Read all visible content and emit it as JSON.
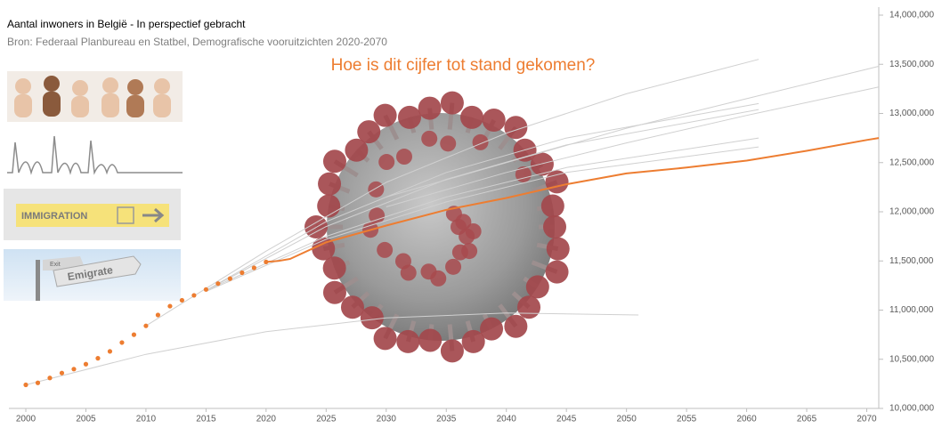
{
  "chart_data": {
    "type": "line",
    "title": "Aantal inwoners in België - In perspectief gebracht",
    "subtitle": "Bron: Federaal Planbureau en Statbel, Demografische vooruitzichten 2020-2070",
    "annotation": "Hoe is dit cijfer tot stand gekomen?",
    "xlim": [
      2000,
      2071
    ],
    "xticks": [
      2000,
      2005,
      2010,
      2015,
      2020,
      2025,
      2030,
      2035,
      2040,
      2045,
      2050,
      2055,
      2060,
      2065,
      2070
    ],
    "ylim": [
      10000000,
      14000000
    ],
    "yticks": [
      {
        "value": 10000000,
        "label": "10,000,000"
      },
      {
        "value": 10500000,
        "label": "10,500,000"
      },
      {
        "value": 11000000,
        "label": "11,000,000"
      },
      {
        "value": 11500000,
        "label": "11,500,000"
      },
      {
        "value": 12000000,
        "label": "12,000,000"
      },
      {
        "value": 12500000,
        "label": "12,500,000"
      },
      {
        "value": 13000000,
        "label": "13,000,000"
      },
      {
        "value": 13500000,
        "label": "13,500,000"
      },
      {
        "value": 14000000,
        "label": "14,000,000"
      }
    ],
    "y_axis_side": "right",
    "series": [
      {
        "color": "#d0d0d0",
        "style": "line",
        "x": [
          2000,
          2010,
          2020,
          2030,
          2040,
          2051
        ],
        "values": [
          10240000,
          10550000,
          10780000,
          10920000,
          10970000,
          10950000
        ]
      },
      {
        "color": "#d0d0d0",
        "style": "line",
        "x": [
          2010,
          2020,
          2030,
          2040,
          2050,
          2061
        ],
        "values": [
          10840000,
          11600000,
          12300000,
          12800000,
          13200000,
          13550000
        ]
      },
      {
        "color": "#d0d0d0",
        "style": "line",
        "x": [
          2030,
          2040,
          2050,
          2060,
          2071
        ],
        "values": [
          12150000,
          12500000,
          12850000,
          13150000,
          13480000
        ]
      },
      {
        "color": "#d0d0d0",
        "style": "line",
        "x": [
          2030,
          2040,
          2050,
          2060,
          2071
        ],
        "values": [
          12050000,
          12400000,
          12700000,
          12980000,
          13270000
        ]
      },
      {
        "color": "#d0d0d0",
        "style": "line",
        "x": [
          2015,
          2025,
          2035,
          2045,
          2061
        ],
        "values": [
          11200000,
          11900000,
          12400000,
          12750000,
          13100000
        ]
      },
      {
        "color": "#d0d0d0",
        "style": "line",
        "x": [
          2015,
          2025,
          2035,
          2045,
          2061
        ],
        "values": [
          11200000,
          11850000,
          12330000,
          12680000,
          13040000
        ]
      },
      {
        "color": "#d0d0d0",
        "style": "line",
        "x": [
          2015,
          2025,
          2035,
          2045,
          2061
        ],
        "values": [
          11200000,
          11750000,
          12150000,
          12450000,
          12750000
        ]
      },
      {
        "color": "#d0d0d0",
        "style": "line",
        "x": [
          2015,
          2025,
          2035,
          2045,
          2061
        ],
        "values": [
          11190000,
          11720000,
          12100000,
          12400000,
          12660000
        ]
      },
      {
        "color": "#ed7d31",
        "style": "dots",
        "x": [
          2000,
          2001,
          2002,
          2003,
          2004,
          2005,
          2006,
          2007,
          2008,
          2009,
          2010,
          2011,
          2012,
          2013,
          2014,
          2015,
          2016,
          2017,
          2018,
          2019,
          2020
        ],
        "values": [
          10240000,
          10260000,
          10310000,
          10360000,
          10400000,
          10450000,
          10510000,
          10580000,
          10670000,
          10750000,
          10840000,
          10950000,
          11040000,
          11100000,
          11150000,
          11210000,
          11270000,
          11320000,
          11380000,
          11430000,
          11490000
        ]
      },
      {
        "color": "#ed7d31",
        "style": "line",
        "x": [
          2020,
          2021,
          2022,
          2025,
          2030,
          2035,
          2040,
          2045,
          2050,
          2055,
          2060,
          2065,
          2070,
          2071
        ],
        "values": [
          11490000,
          11500000,
          11520000,
          11690000,
          11860000,
          12020000,
          12140000,
          12280000,
          12390000,
          12450000,
          12520000,
          12620000,
          12730000,
          12750000
        ]
      }
    ]
  },
  "images": {
    "labels": [
      "IMMIGRATION",
      "Exit",
      "Emigrate"
    ]
  }
}
